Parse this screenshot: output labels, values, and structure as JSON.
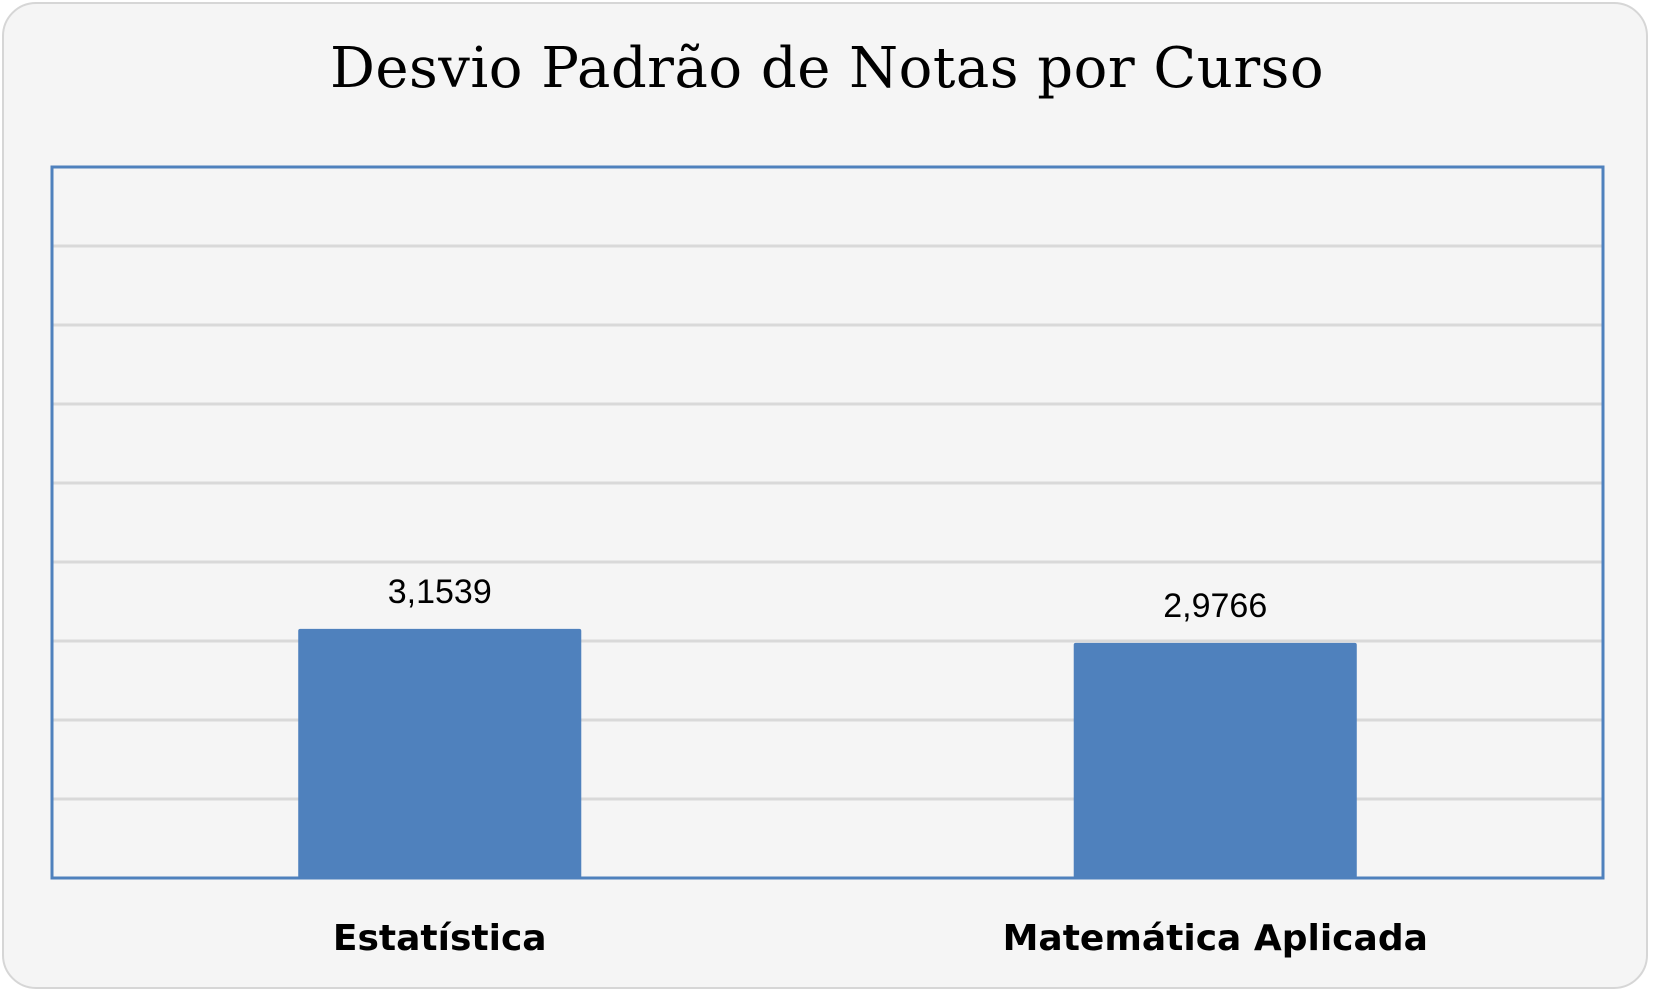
{
  "chart_data": {
    "type": "bar",
    "title": "Desvio Padrão de Notas por Curso",
    "categories": [
      "Estatística",
      "Matemática Aplicada"
    ],
    "values": [
      3.1539,
      2.9766
    ],
    "value_labels": [
      "3,1539",
      "2,9766"
    ],
    "ylim": [
      0,
      9
    ],
    "y_gridlines": [
      1,
      2,
      3,
      4,
      5,
      6,
      7,
      8
    ],
    "grid": true,
    "legend": "none",
    "bar_color": "#4f81bd",
    "plot_border_color": "#4f81bd",
    "gridline_color": "#d9d9d9",
    "background_color": "#f5f5f5"
  }
}
